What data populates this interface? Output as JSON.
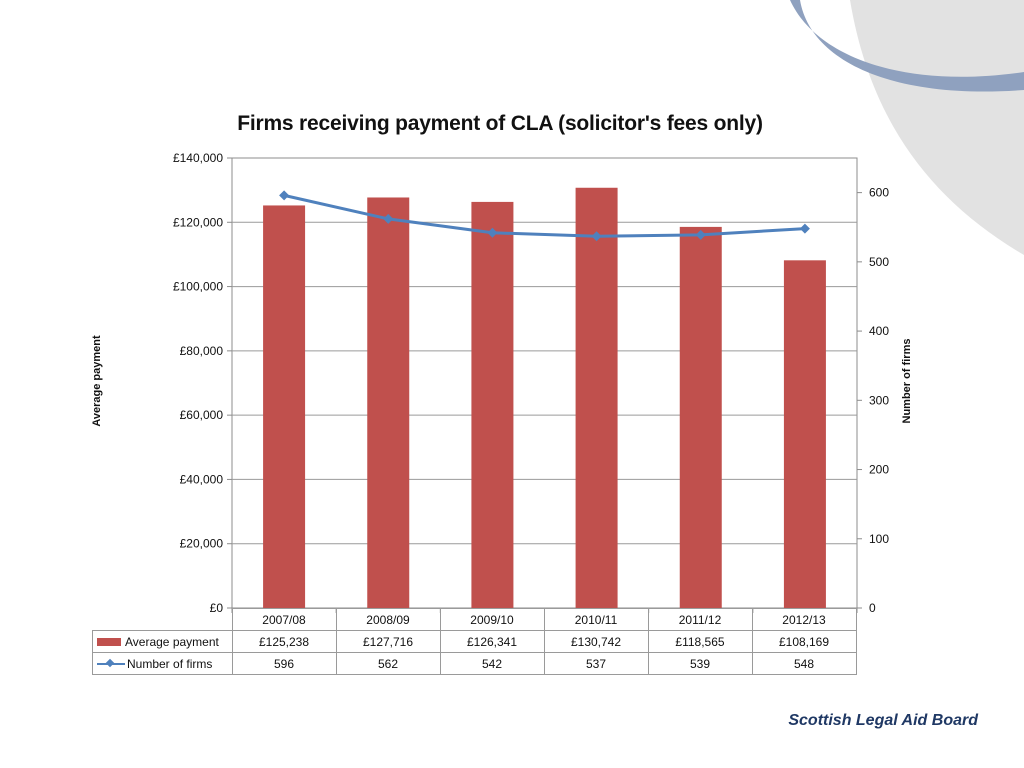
{
  "slide": {
    "footer": "Scottish Legal Aid Board"
  },
  "chart_data": {
    "type": "bar",
    "title": "Firms receiving payment of CLA (solicitor's fees only)",
    "categories": [
      "2007/08",
      "2008/09",
      "2009/10",
      "2010/11",
      "2011/12",
      "2012/13"
    ],
    "series": [
      {
        "name": "Average payment",
        "type": "bar",
        "axis": "left",
        "color": "#c0504d",
        "values": [
          125238,
          127716,
          126341,
          130742,
          118565,
          108169
        ],
        "labels": [
          "£125,238",
          "£127,716",
          "£126,341",
          "£130,742",
          "£118,565",
          "£108,169"
        ]
      },
      {
        "name": "Number of firms",
        "type": "line",
        "axis": "right",
        "color": "#4f81bd",
        "values": [
          596,
          562,
          542,
          537,
          539,
          548
        ],
        "labels": [
          "596",
          "562",
          "542",
          "537",
          "539",
          "548"
        ]
      }
    ],
    "ylabel": "Average payment",
    "y2label": "Number of firms",
    "ylim": [
      0,
      140000
    ],
    "y2lim": [
      0,
      650
    ],
    "yticks": [
      "£0",
      "£20,000",
      "£40,000",
      "£60,000",
      "£80,000",
      "£100,000",
      "£120,000",
      "£140,000"
    ],
    "y2ticks": [
      "0",
      "100",
      "200",
      "300",
      "400",
      "500",
      "600"
    ],
    "grid": true,
    "legend": "data-table"
  }
}
